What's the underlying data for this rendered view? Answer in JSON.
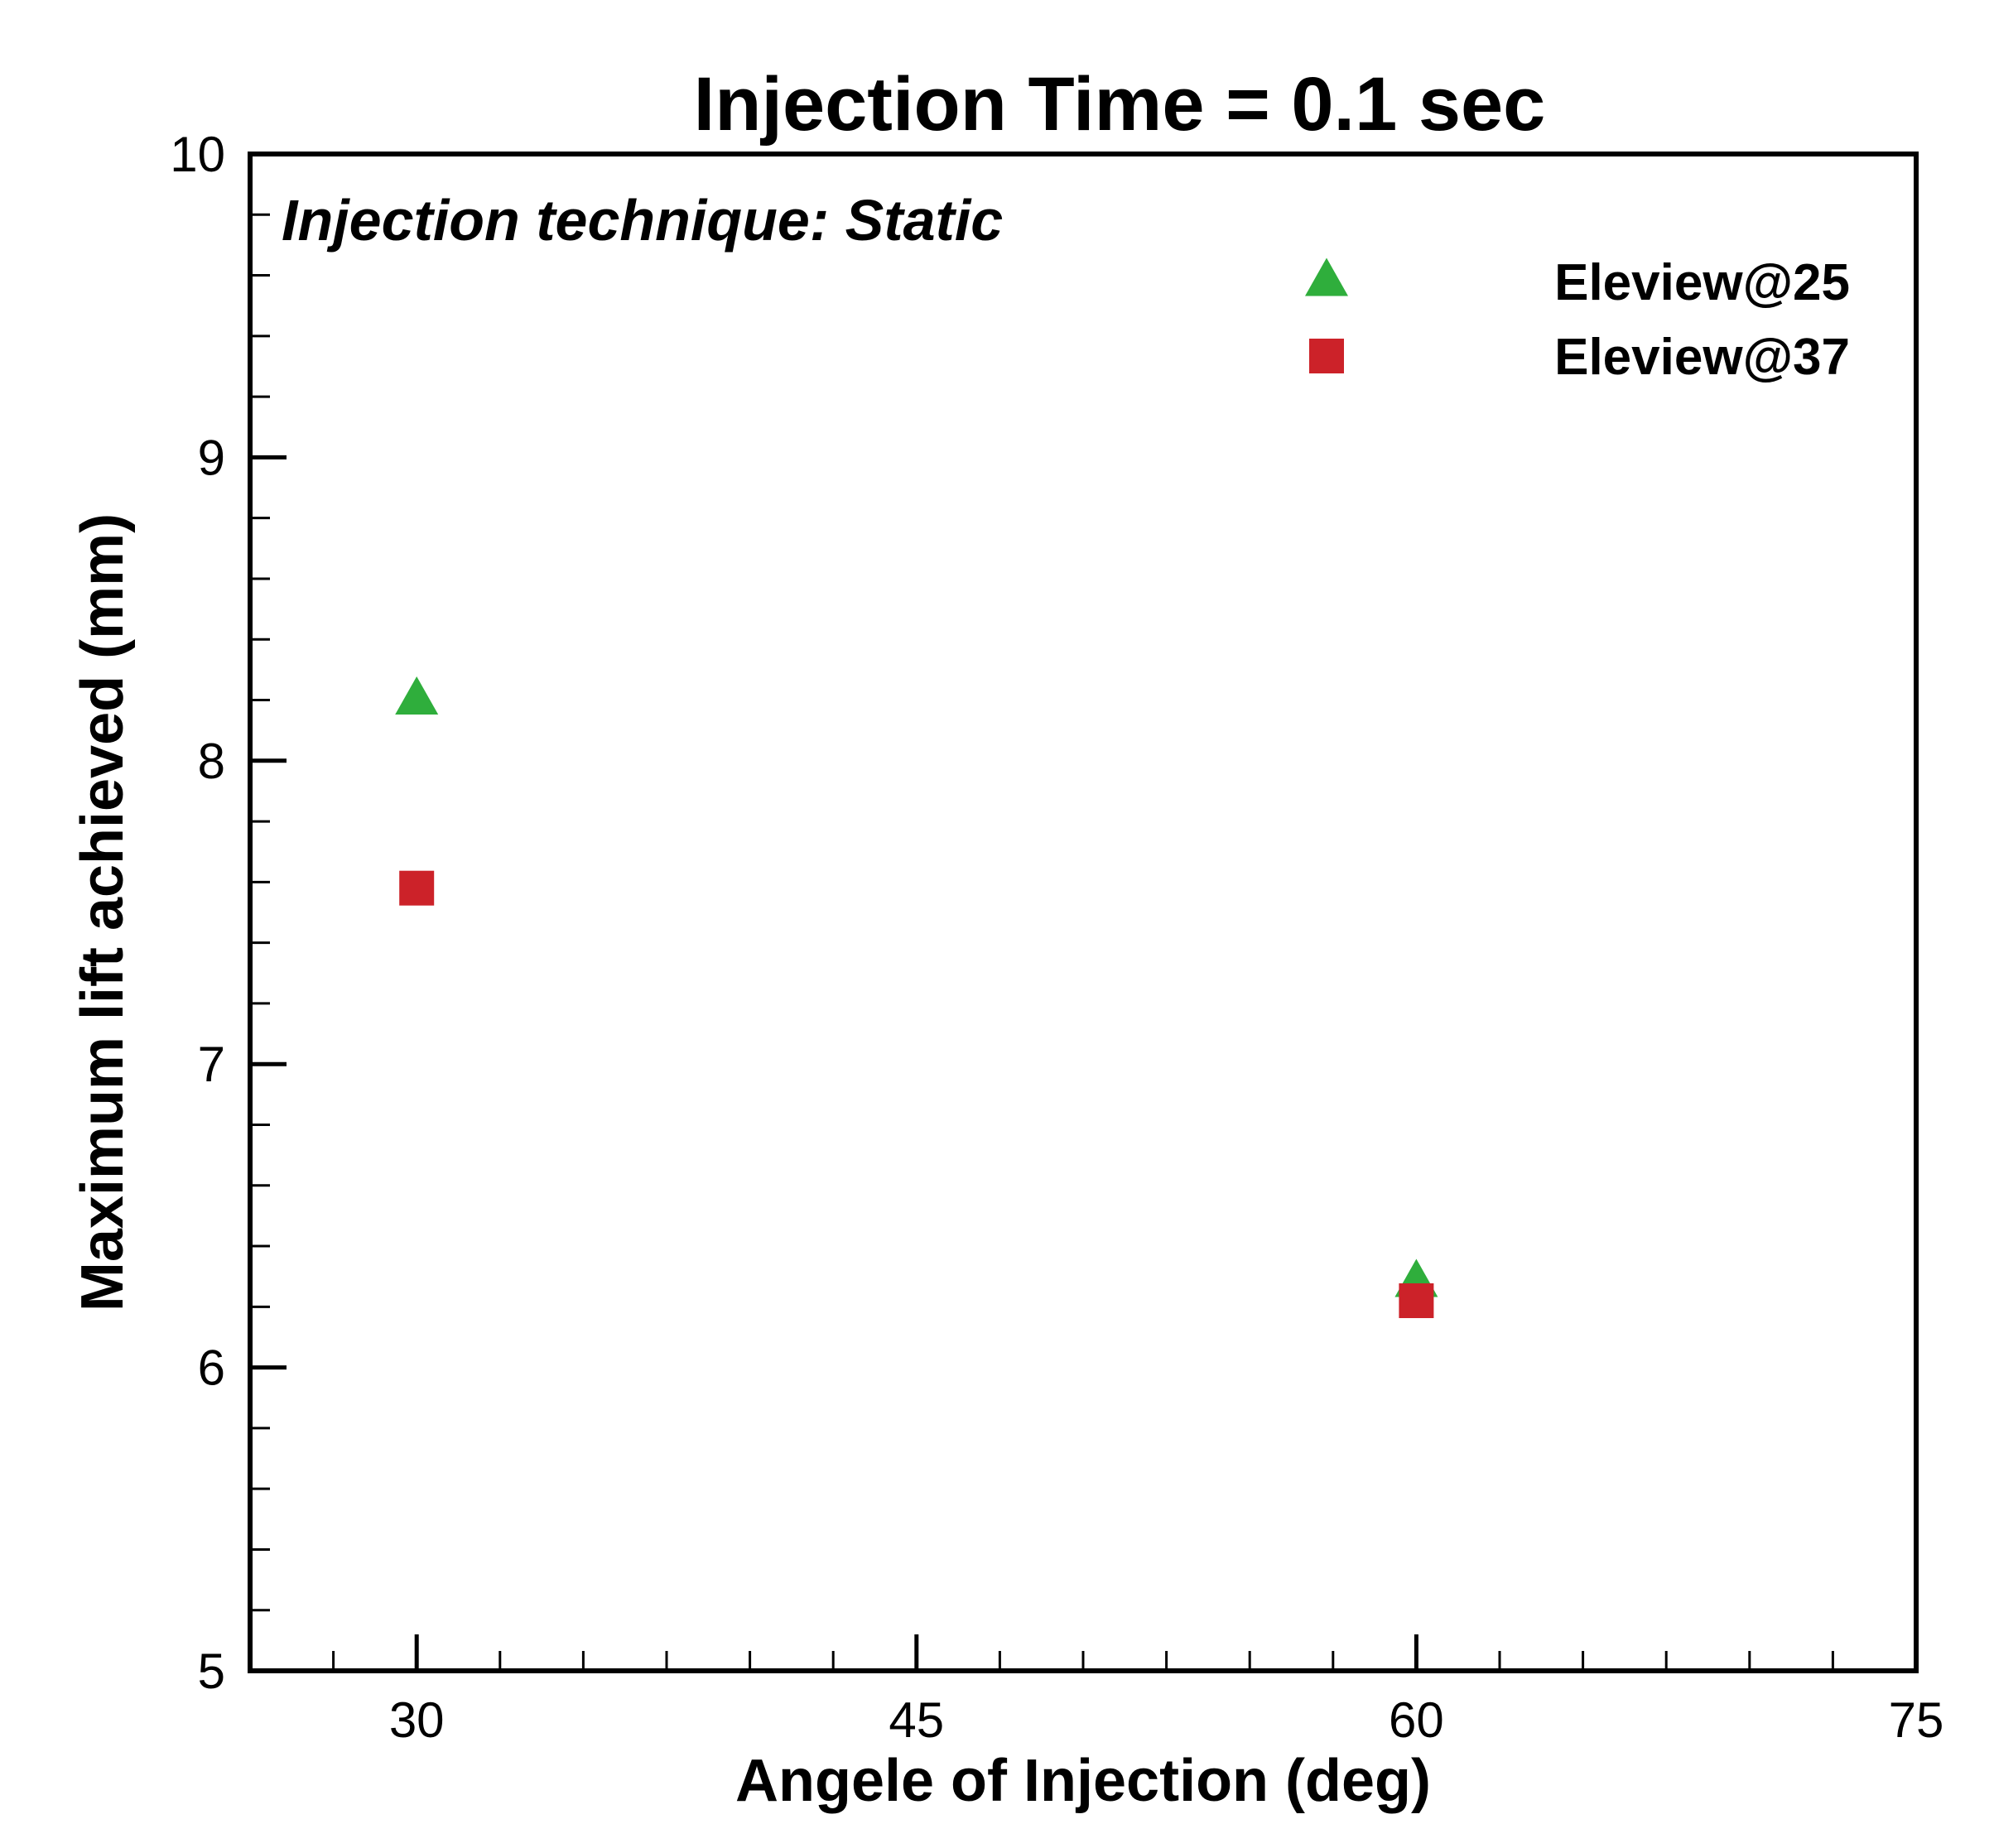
{
  "chart_data": {
    "type": "scatter",
    "title": "Injection Time = 0.1 sec",
    "xlabel": "Angele of Injection (deg)",
    "ylabel": "Maximum lift achieved (mm)",
    "xlim": [
      25,
      75
    ],
    "ylim": [
      5,
      10
    ],
    "xticks": [
      30,
      45,
      60,
      75
    ],
    "yticks": [
      5,
      6,
      7,
      8,
      9,
      10
    ],
    "annotation": "Injection technique: Static",
    "legend_position": "top-right",
    "series": [
      {
        "name": "Eleview@25",
        "marker": "triangle",
        "color": "#2fae3c",
        "points": [
          {
            "x": 30,
            "y": 8.2
          },
          {
            "x": 60,
            "y": 6.28
          }
        ]
      },
      {
        "name": "Eleview@37",
        "marker": "square",
        "color": "#cc2229",
        "points": [
          {
            "x": 30,
            "y": 7.58
          },
          {
            "x": 60,
            "y": 6.22
          }
        ]
      }
    ]
  }
}
